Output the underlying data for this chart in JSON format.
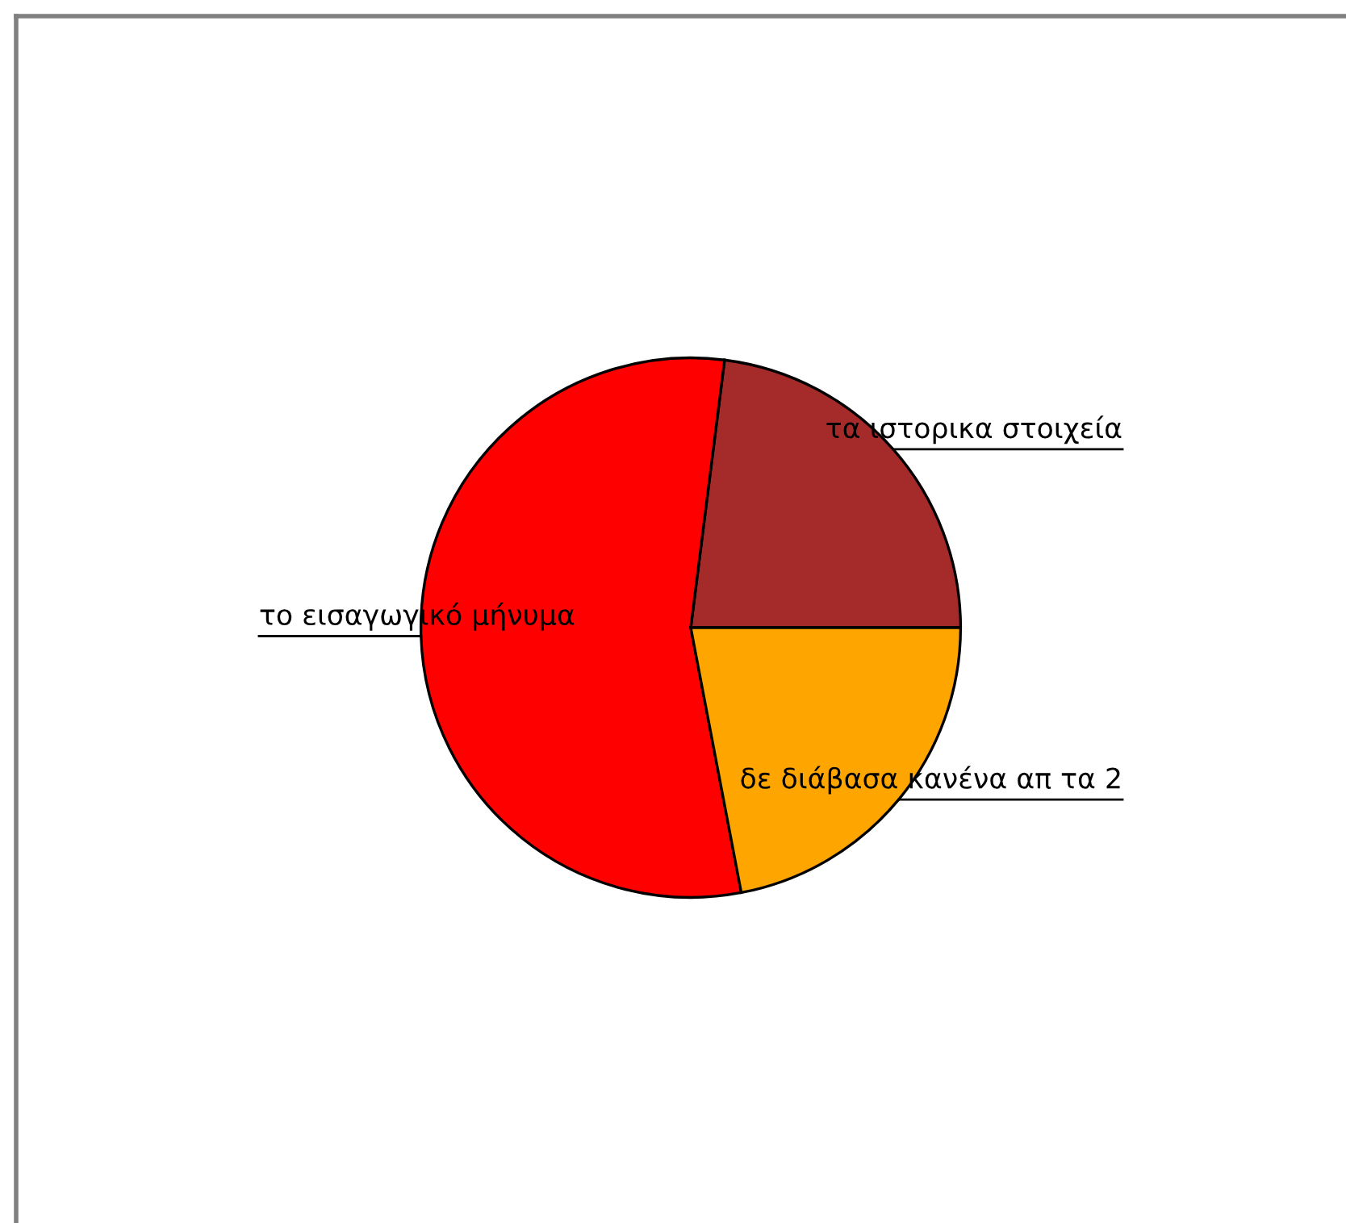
{
  "chart_data": {
    "type": "pie",
    "categories": [
      "τα ιστορικα στοιχεία",
      "το εισαγωγικό μήνυμα",
      "δε διάβασα κανένα απ τα 2"
    ],
    "values": [
      23,
      55,
      22
    ],
    "colors": [
      "#a52a2a",
      "#ff0000",
      "#ffa500"
    ]
  }
}
